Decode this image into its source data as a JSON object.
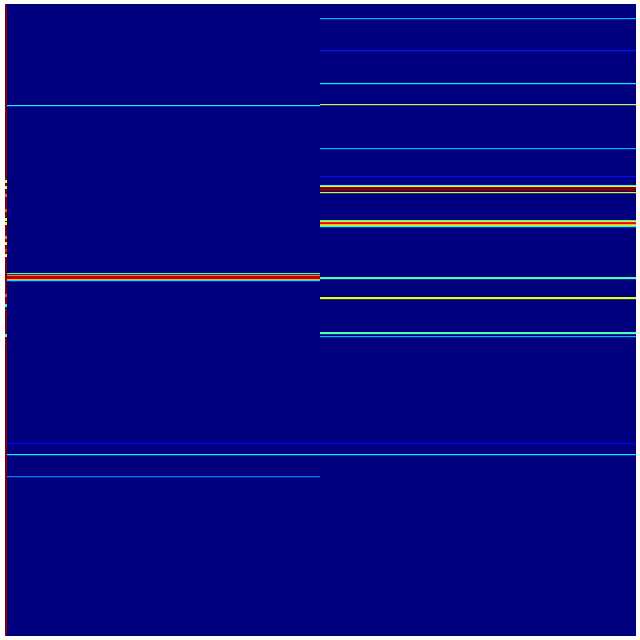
{
  "chart_data": {
    "type": "heatmap",
    "colormap": "jet",
    "background_value": 0.0,
    "rows": 632,
    "panels": [
      {
        "name": "",
        "bands": [
          {
            "row": 101,
            "value": 0.38
          },
          {
            "row": 269,
            "value": 0.45
          },
          {
            "row": 271,
            "value": 0.75
          },
          {
            "row": 272,
            "value": 0.92
          },
          {
            "row": 273,
            "value": 0.97
          },
          {
            "row": 274,
            "value": 0.92
          },
          {
            "row": 275,
            "value": 0.7
          },
          {
            "row": 276,
            "value": 0.35
          },
          {
            "row": 439,
            "value": 0.12
          },
          {
            "row": 450,
            "value": 0.38
          },
          {
            "row": 472,
            "value": 0.25
          }
        ]
      },
      {
        "name": "",
        "bands": [
          {
            "row": 14,
            "value": 0.3
          },
          {
            "row": 46,
            "value": 0.15
          },
          {
            "row": 79,
            "value": 0.36
          },
          {
            "row": 100,
            "value": 0.55
          },
          {
            "row": 144,
            "value": 0.3
          },
          {
            "row": 172,
            "value": 0.14
          },
          {
            "row": 181,
            "value": 0.4
          },
          {
            "row": 182,
            "value": 0.6
          },
          {
            "row": 183,
            "value": 1.0
          },
          {
            "row": 184,
            "value": 1.0
          },
          {
            "row": 185,
            "value": 1.0
          },
          {
            "row": 186,
            "value": 1.0
          },
          {
            "row": 188,
            "value": 0.55
          },
          {
            "row": 216,
            "value": 0.4
          },
          {
            "row": 217,
            "value": 0.65
          },
          {
            "row": 218,
            "value": 0.85
          },
          {
            "row": 219,
            "value": 0.88
          },
          {
            "row": 220,
            "value": 0.7
          },
          {
            "row": 221,
            "value": 0.55
          },
          {
            "row": 222,
            "value": 0.38
          },
          {
            "row": 273,
            "value": 0.45
          },
          {
            "row": 274,
            "value": 0.45
          },
          {
            "row": 293,
            "value": 0.6
          },
          {
            "row": 294,
            "value": 0.6
          },
          {
            "row": 328,
            "value": 0.45
          },
          {
            "row": 329,
            "value": 0.45
          },
          {
            "row": 332,
            "value": 0.3
          },
          {
            "row": 439,
            "value": 0.12
          },
          {
            "row": 450,
            "value": 0.36
          }
        ]
      }
    ],
    "edge_column_value": 1.0,
    "edge_speckles": [
      {
        "row": 176,
        "value": 0.6
      },
      {
        "row": 182,
        "value": 0.6
      },
      {
        "row": 190,
        "value": 0.8
      },
      {
        "row": 205,
        "value": 0.8
      },
      {
        "row": 214,
        "value": 0.6
      },
      {
        "row": 218,
        "value": 0.6
      },
      {
        "row": 232,
        "value": 0.75
      },
      {
        "row": 238,
        "value": 0.6
      },
      {
        "row": 245,
        "value": 0.85
      },
      {
        "row": 250,
        "value": 0.6
      },
      {
        "row": 290,
        "value": 0.8
      },
      {
        "row": 300,
        "value": 0.4
      },
      {
        "row": 330,
        "value": 0.45
      }
    ],
    "title": "",
    "xlabel": "",
    "ylabel": "",
    "grid": false
  }
}
